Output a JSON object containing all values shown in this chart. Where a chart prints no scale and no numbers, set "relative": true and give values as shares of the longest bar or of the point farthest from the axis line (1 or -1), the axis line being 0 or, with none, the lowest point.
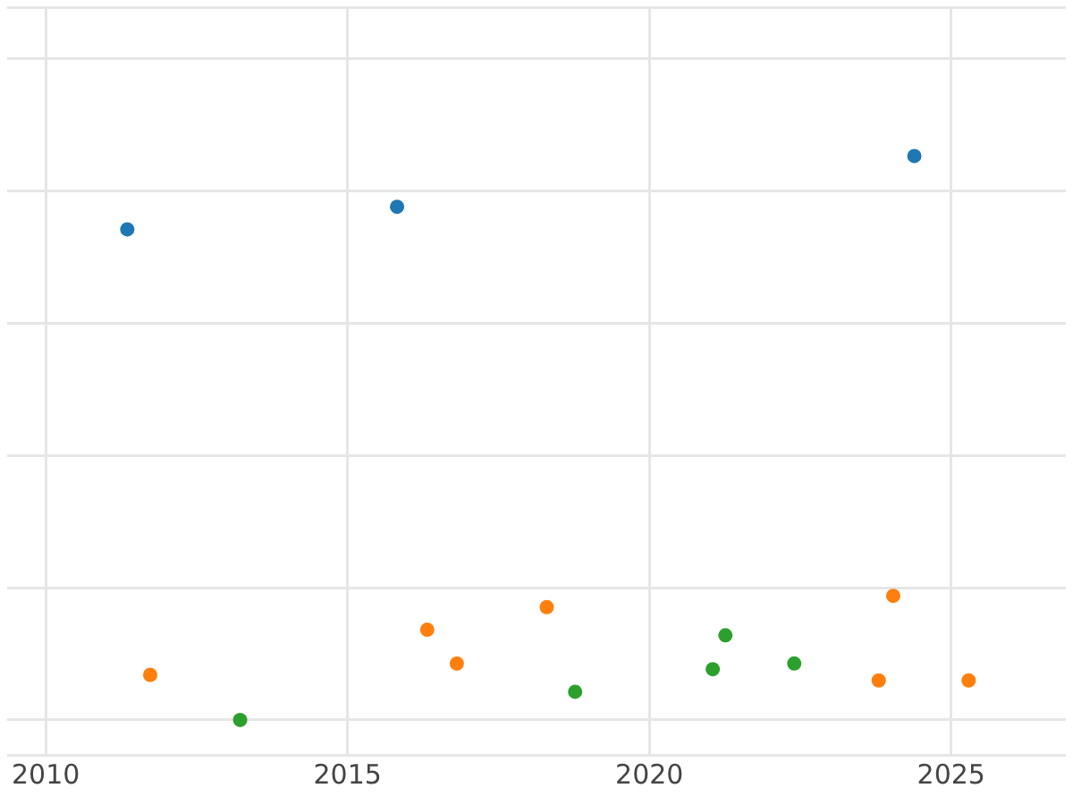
{
  "chart_data": {
    "type": "scatter",
    "relative": true,
    "marker": "circle",
    "grid": true,
    "legend": false,
    "tick_labels": "x",
    "xlim": [
      2009.36,
      2026.9
    ],
    "xticks": [
      2010,
      2015,
      2020,
      2025
    ],
    "series": [
      {
        "color": "#1f77b4",
        "x": [
          2011.35,
          2015.82,
          2024.39
        ],
        "values": [
          0.87,
          0.91,
          1.0
        ]
      },
      {
        "color": "#ff7f0e",
        "x": [
          2011.73,
          2016.32,
          2016.81,
          2018.3,
          2023.8,
          2024.04,
          2025.29
        ],
        "values": [
          0.08,
          0.16,
          0.1,
          0.2,
          0.07,
          0.22,
          0.07
        ]
      },
      {
        "color": "#2ca02c",
        "x": [
          2013.22,
          2018.77,
          2021.05,
          2021.26,
          2022.4
        ],
        "values": [
          0.0,
          0.05,
          0.09,
          0.15,
          0.1
        ]
      }
    ]
  }
}
